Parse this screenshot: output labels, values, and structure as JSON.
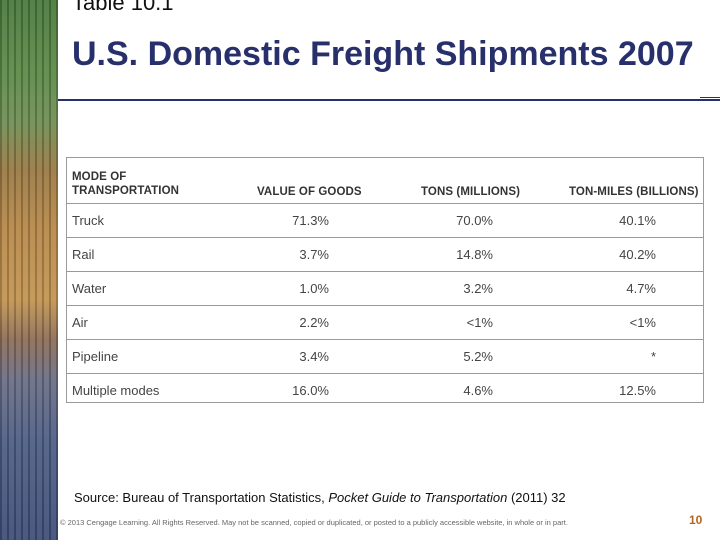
{
  "slide": {
    "table_label": "Table 10.1",
    "title": "U.S. Domestic Freight Shipments 2007",
    "page_number": "10"
  },
  "table": {
    "headers": [
      "MODE OF TRANSPORTATION",
      "VALUE OF GOODS",
      "TONS (MILLIONS)",
      "TON-MILES (BILLIONS)"
    ],
    "header_line1": "MODE OF",
    "header_line2": "TRANSPORTATION",
    "rows": [
      [
        "Truck",
        "71.3%",
        "70.0%",
        "40.1%"
      ],
      [
        "Rail",
        "3.7%",
        "14.8%",
        "40.2%"
      ],
      [
        "Water",
        "1.0%",
        "3.2%",
        "4.7%"
      ],
      [
        "Air",
        "2.2%",
        "<1%",
        "<1%"
      ],
      [
        "Pipeline",
        "3.4%",
        "5.2%",
        "*"
      ],
      [
        "Multiple modes",
        "16.0%",
        "4.6%",
        "12.5%"
      ]
    ]
  },
  "footer": {
    "source_prefix": "Source: Bureau of Transportation Statistics, ",
    "source_title": "Pocket Guide to Transportation",
    "source_suffix": " (2011) 32",
    "copyright": "© 2013 Cengage Learning. All Rights Reserved. May not be scanned, copied or duplicated, or posted to a publicly accessible website, in whole or in part."
  },
  "colors": {
    "title": "#27306b",
    "page_number": "#b5651d",
    "table_border": "#9a9a9a"
  }
}
